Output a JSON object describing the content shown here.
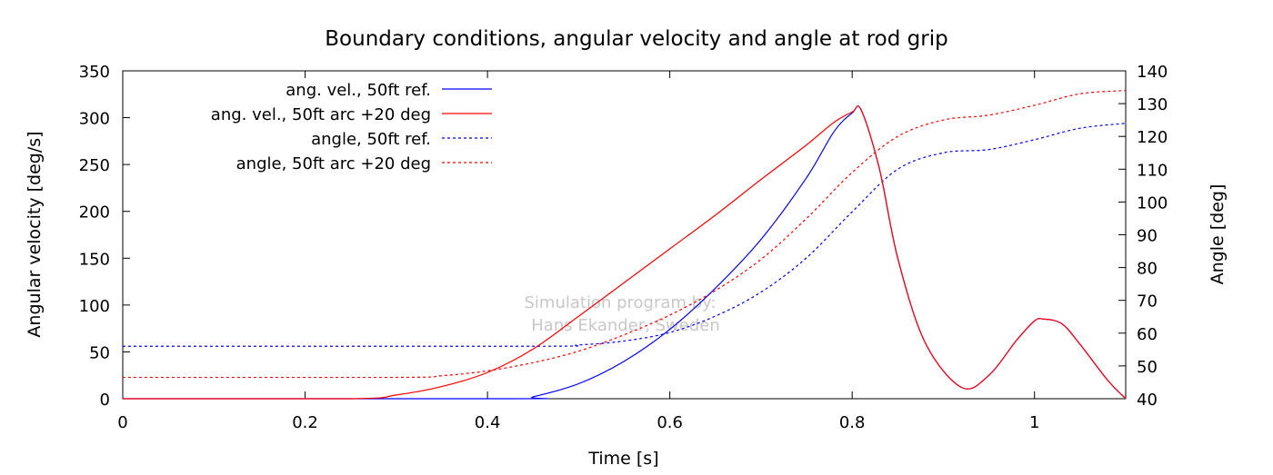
{
  "chart_data": {
    "type": "line",
    "title": "Boundary conditions, angular velocity and angle at rod grip",
    "xlabel": "Time [s]",
    "ylabel": "Angular velocity [deg/s]",
    "y2label": "Angle [deg]",
    "xlim": [
      0,
      1.1
    ],
    "ylim": [
      0,
      350
    ],
    "y2lim": [
      40,
      140
    ],
    "x_ticks": [
      "0",
      "0.2",
      "0.4",
      "0.6",
      "0.8",
      "1"
    ],
    "x_tick_values": [
      0,
      0.2,
      0.4,
      0.6,
      0.8,
      1.0
    ],
    "y_ticks": [
      "0",
      "50",
      "100",
      "150",
      "200",
      "250",
      "300",
      "350"
    ],
    "y_tick_values": [
      0,
      50,
      100,
      150,
      200,
      250,
      300,
      350
    ],
    "y2_ticks": [
      "40",
      "50",
      "60",
      "70",
      "80",
      "90",
      "100",
      "110",
      "120",
      "130",
      "140"
    ],
    "y2_tick_values": [
      40,
      50,
      60,
      70,
      80,
      90,
      100,
      110,
      120,
      130,
      140
    ],
    "legend_position": "top-left",
    "grid": false,
    "watermark": [
      "Simulation program by:",
      "Hans Ekander, Sweden"
    ],
    "series": [
      {
        "name": "ang. vel., 50ft ref.",
        "axis": "left",
        "color": "#0000ff",
        "dash": "solid",
        "x": [
          0,
          0.43,
          0.45,
          0.5,
          0.55,
          0.6,
          0.65,
          0.7,
          0.75,
          0.78,
          0.8,
          0.81,
          0.83,
          0.85,
          0.88,
          0.92,
          0.95,
          0.98,
          1.0,
          1.01,
          1.03,
          1.05,
          1.08,
          1.1
        ],
        "y": [
          0,
          0,
          2,
          16,
          40,
          74,
          118,
          170,
          236,
          285,
          305,
          308,
          245,
          150,
          60,
          12,
          25,
          62,
          83,
          85,
          80,
          58,
          20,
          0
        ]
      },
      {
        "name": "ang. vel., 50ft arc +20 deg",
        "axis": "left",
        "color": "#ff0000",
        "dash": "solid",
        "x": [
          0,
          0.25,
          0.3,
          0.35,
          0.4,
          0.45,
          0.5,
          0.55,
          0.6,
          0.65,
          0.7,
          0.75,
          0.78,
          0.8,
          0.81,
          0.83,
          0.85,
          0.88,
          0.92,
          0.95,
          0.98,
          1.0,
          1.01,
          1.03,
          1.05,
          1.08,
          1.1
        ],
        "y": [
          0,
          0,
          4,
          13,
          28,
          53,
          88,
          124,
          160,
          196,
          234,
          271,
          295,
          306,
          308,
          245,
          150,
          60,
          12,
          25,
          62,
          83,
          85,
          80,
          58,
          20,
          0
        ]
      },
      {
        "name": "angle, 50ft ref.",
        "axis": "right",
        "color": "#0000ff",
        "dash": "dashed",
        "x": [
          0,
          0.45,
          0.5,
          0.55,
          0.6,
          0.65,
          0.7,
          0.75,
          0.8,
          0.85,
          0.9,
          0.95,
          1.0,
          1.05,
          1.1
        ],
        "y": [
          56,
          56,
          56.4,
          57.6,
          60.2,
          65.2,
          72.5,
          83,
          97,
          110,
          115,
          116,
          119,
          122.5,
          124
        ]
      },
      {
        "name": "angle, 50ft arc +20 deg",
        "axis": "right",
        "color": "#ff0000",
        "dash": "dashed",
        "x": [
          0,
          0.3,
          0.35,
          0.4,
          0.45,
          0.5,
          0.55,
          0.6,
          0.65,
          0.7,
          0.75,
          0.8,
          0.85,
          0.9,
          0.95,
          1.0,
          1.05,
          1.1
        ],
        "y": [
          46.5,
          46.5,
          47,
          48.5,
          51,
          54.5,
          59.5,
          65.5,
          73,
          82.5,
          95,
          109,
          120,
          125,
          126.5,
          129.5,
          133,
          134
        ]
      }
    ]
  }
}
